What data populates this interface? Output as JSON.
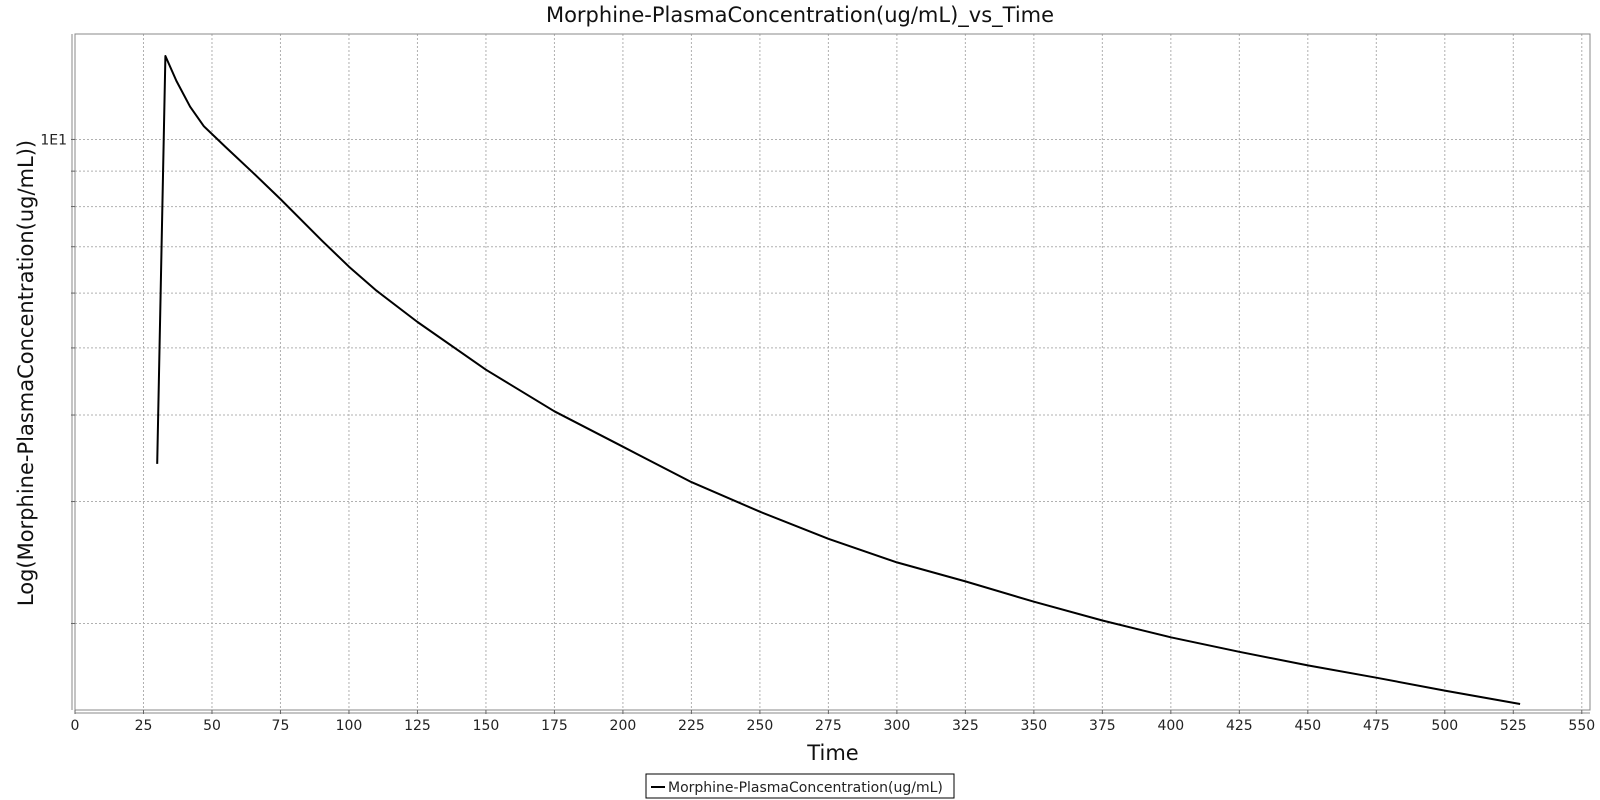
{
  "chart_data": {
    "type": "line",
    "title": "Morphine-PlasmaConcentration(ug/mL)_vs_Time",
    "xlabel": "Time",
    "ylabel": "Log(Morphine-PlasmaConcentration(ug/mL))",
    "x_ticks": [
      "0",
      "25",
      "50",
      "75",
      "100",
      "125",
      "150",
      "175",
      "200",
      "225",
      "250",
      "275",
      "300",
      "325",
      "350",
      "375",
      "400",
      "425",
      "450",
      "475",
      "500",
      "525",
      "550"
    ],
    "y_tick_labels": [
      "1E1"
    ],
    "xlim": [
      0,
      553
    ],
    "ylim": [
      1.5,
      14.2
    ],
    "y_scale": "log",
    "grid": true,
    "legend": "bottom-center",
    "series": [
      {
        "name": "Morphine-PlasmaConcentration(ug/mL)",
        "color": "#000000",
        "x": [
          30,
          33,
          37,
          42,
          47,
          55,
          65,
          75,
          90,
          100,
          110,
          125,
          150,
          175,
          200,
          225,
          250,
          275,
          300,
          325,
          350,
          375,
          400,
          425,
          450,
          475,
          500,
          527.5
        ],
        "y": [
          3.4,
          13.2,
          12.15,
          11.15,
          10.45,
          9.75,
          8.95,
          8.2,
          7.15,
          6.55,
          6.05,
          5.45,
          4.65,
          4.05,
          3.6,
          3.2,
          2.9,
          2.65,
          2.45,
          2.3,
          2.15,
          2.02,
          1.91,
          1.82,
          1.74,
          1.67,
          1.6,
          1.53
        ]
      }
    ]
  }
}
